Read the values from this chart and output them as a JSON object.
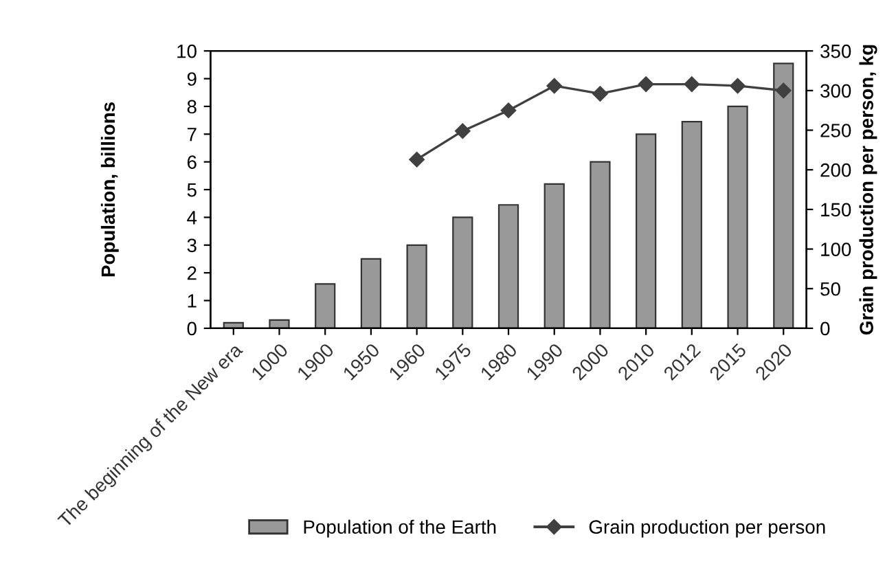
{
  "chart_data": {
    "type": "bar",
    "ylabel": "Population, billions",
    "y2label": "Grain production per person, kg",
    "categories": [
      "The beginning of the New era",
      "1000",
      "1900",
      "1950",
      "1960",
      "1975",
      "1980",
      "1990",
      "2000",
      "2010",
      "2012",
      "2015",
      "2020"
    ],
    "series": [
      {
        "name": "Population of the Earth",
        "color": "#999999",
        "values": [
          0.2,
          0.3,
          1.6,
          2.5,
          3.0,
          4.0,
          4.45,
          5.2,
          6.0,
          7.0,
          7.45,
          8.0,
          9.55
        ]
      },
      {
        "name": "Grain production per person",
        "type": "line",
        "axis": "y2",
        "color": "#404040",
        "marker": "diamond",
        "values": [
          null,
          null,
          null,
          null,
          213,
          249,
          275,
          306,
          296,
          308,
          308,
          306,
          300
        ]
      }
    ],
    "ylim": [
      0,
      10
    ],
    "yticks": [
      0,
      1,
      2,
      3,
      4,
      5,
      6,
      7,
      8,
      9,
      10
    ],
    "y2lim": [
      0,
      350
    ],
    "y2ticks": [
      0,
      50,
      100,
      150,
      200,
      250,
      300,
      350
    ],
    "grid": false,
    "legend": "bottom"
  }
}
